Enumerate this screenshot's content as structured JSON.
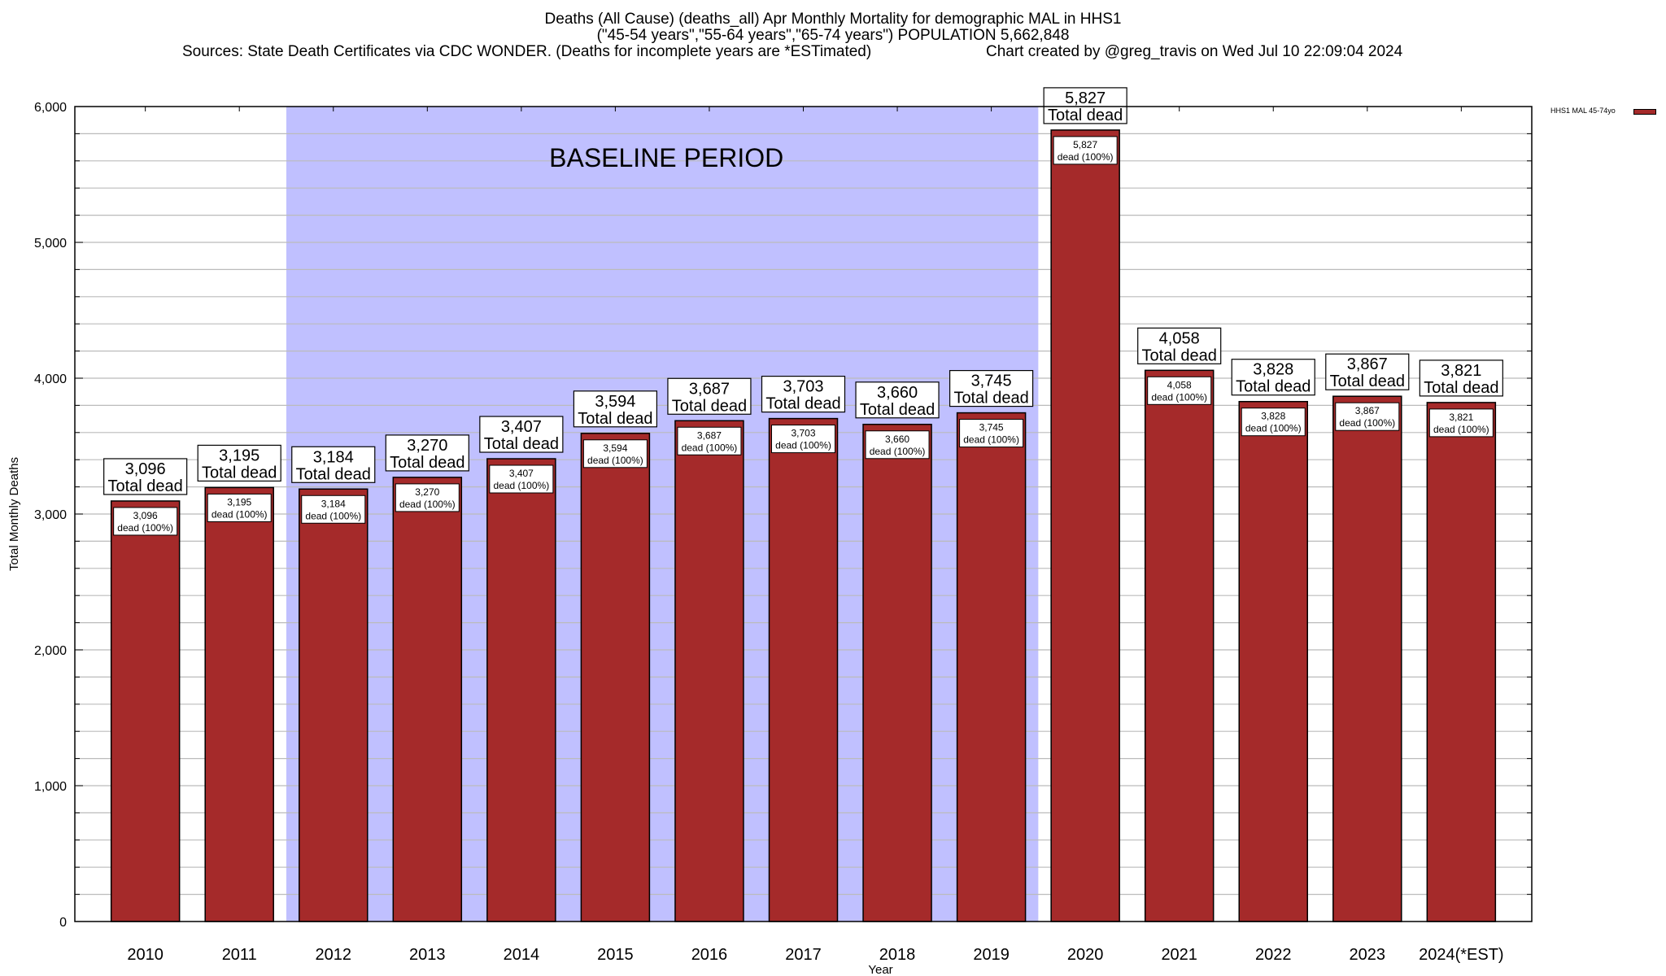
{
  "header": {
    "title_line1": "Deaths (All Cause) (deaths_all) Apr Monthly Mortality for demographic MAL in HHS1",
    "title_line2": "(\"45-54 years\",\"55-64 years\",\"65-74 years\") POPULATION 5,662,848",
    "sources": "Sources: State Death Certificates via CDC WONDER. (Deaths for incomplete years are *ESTimated)",
    "credit": "Chart created by @greg_travis on Wed Jul 10 22:09:04 2024"
  },
  "legend": {
    "label": "HHS1 MAL 45-74yo",
    "color": "#a52a2a"
  },
  "chart_data": {
    "type": "bar",
    "title": "Deaths (All Cause) (deaths_all) Apr Monthly Mortality for demographic MAL in HHS1",
    "xlabel": "Year",
    "ylabel": "Total Monthly Deaths",
    "ylim": [
      0,
      6000
    ],
    "yticks": [
      0,
      1000,
      2000,
      3000,
      4000,
      5000,
      6000
    ],
    "ytick_labels": [
      "0",
      "1,000",
      "2,000",
      "3,000",
      "4,000",
      "5,000",
      "6,000"
    ],
    "minor_grid_step": 200,
    "grid": true,
    "legend_position": "top-right",
    "categories": [
      "2010",
      "2011",
      "2012",
      "2013",
      "2014",
      "2015",
      "2016",
      "2017",
      "2018",
      "2019",
      "2020",
      "2021",
      "2022",
      "2023",
      "2024(*EST)"
    ],
    "series": [
      {
        "name": "HHS1 MAL 45-74yo",
        "color": "#a52a2a",
        "values": [
          3096,
          3195,
          3184,
          3270,
          3407,
          3594,
          3687,
          3703,
          3660,
          3745,
          5827,
          4058,
          3828,
          3867,
          3821
        ]
      }
    ],
    "total_labels": [
      "3,096",
      "3,195",
      "3,184",
      "3,270",
      "3,407",
      "3,594",
      "3,687",
      "3,703",
      "3,660",
      "3,745",
      "5,827",
      "4,058",
      "3,828",
      "3,867",
      "3,821"
    ],
    "total_suffix": "Total dead",
    "inner_suffix": "dead (100%)",
    "annotations": [
      {
        "text": "BASELINE PERIOD",
        "type": "shaded_region",
        "from_category": "2012",
        "to_category": "2019",
        "color": "#c0c0ff"
      }
    ]
  }
}
